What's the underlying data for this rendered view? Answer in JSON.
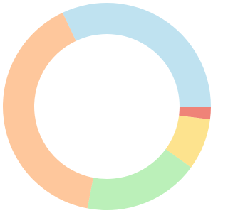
{
  "chart_data": {
    "type": "donut",
    "values": [
      32,
      2,
      8,
      18,
      40
    ],
    "colors": [
      "#bfe2f0",
      "#ef8378",
      "#fde38e",
      "#bbf0b9",
      "#fec79c"
    ]
  }
}
